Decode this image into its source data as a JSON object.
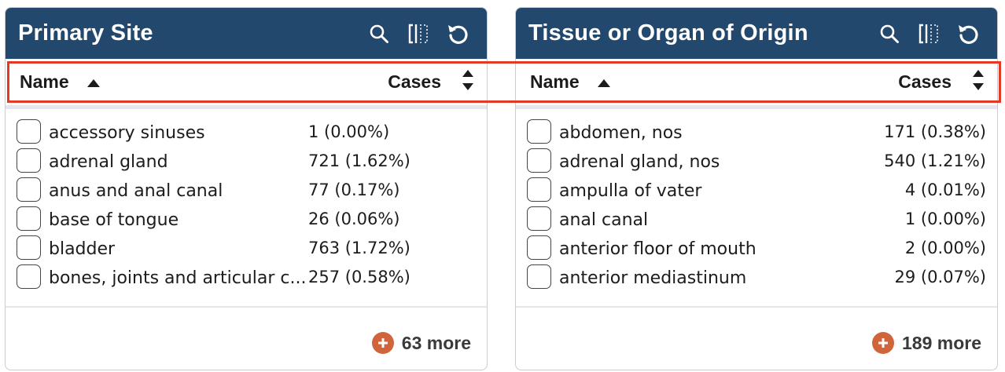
{
  "colors": {
    "header_bg": "#23486e",
    "accent_plus": "#d0643b",
    "highlight": "#e23a25"
  },
  "cards": [
    {
      "title": "Primary Site",
      "icons": [
        "search-icon",
        "column-toggle-icon",
        "reset-icon"
      ],
      "col_name": "Name",
      "col_cases": "Cases",
      "rows": [
        {
          "label": "accessory sinuses",
          "count": "1 (0.00%)"
        },
        {
          "label": "adrenal gland",
          "count": "721 (1.62%)"
        },
        {
          "label": "anus and anal canal",
          "count": "77 (0.17%)"
        },
        {
          "label": "base of tongue",
          "count": "26 (0.06%)"
        },
        {
          "label": "bladder",
          "count": "763 (1.72%)"
        },
        {
          "label": "bones, joints and articular c...",
          "count": "257 (0.58%)"
        }
      ],
      "more": "63 more"
    },
    {
      "title": "Tissue or Organ of Origin",
      "icons": [
        "search-icon",
        "column-toggle-icon",
        "reset-icon"
      ],
      "col_name": "Name",
      "col_cases": "Cases",
      "rows": [
        {
          "label": "abdomen, nos",
          "count": "171 (0.38%)"
        },
        {
          "label": "adrenal gland, nos",
          "count": "540 (1.21%)"
        },
        {
          "label": "ampulla of vater",
          "count": "4 (0.01%)"
        },
        {
          "label": "anal canal",
          "count": "1 (0.00%)"
        },
        {
          "label": "anterior floor of mouth",
          "count": "2 (0.00%)"
        },
        {
          "label": "anterior mediastinum",
          "count": "29 (0.07%)"
        }
      ],
      "more": "189 more"
    }
  ]
}
